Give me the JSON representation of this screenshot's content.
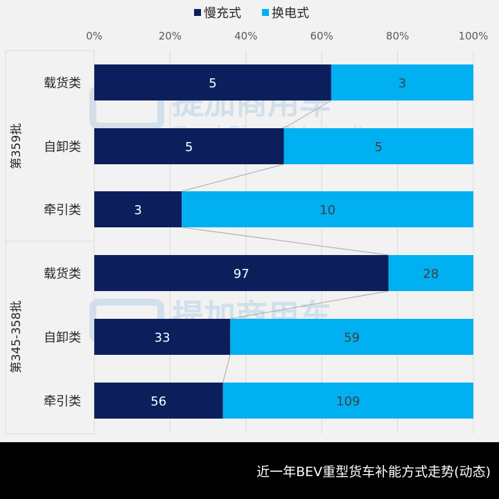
{
  "chart_data": {
    "type": "bar",
    "stacking": "percent",
    "orientation": "horizontal",
    "legend": {
      "placement": "top",
      "items": [
        {
          "label": "慢充式",
          "color": "#0c1f5c"
        },
        {
          "label": "换电式",
          "color": "#00b0f0"
        }
      ]
    },
    "x_axis": {
      "ticks": [
        "0%",
        "20%",
        "40%",
        "60%",
        "80%",
        "100%"
      ],
      "range": [
        0,
        100
      ]
    },
    "groups": [
      {
        "label": "第359批",
        "categories": [
          "载货类",
          "自卸类",
          "牵引类"
        ]
      },
      {
        "label": "第345-358批",
        "categories": [
          "载货类",
          "自卸类",
          "牵引类"
        ]
      }
    ],
    "series": [
      {
        "name": "慢充式",
        "color": "#0c1f5c",
        "values": [
          5,
          5,
          3,
          97,
          33,
          56
        ]
      },
      {
        "name": "换电式",
        "color": "#00b0f0",
        "values": [
          3,
          5,
          10,
          28,
          59,
          109
        ]
      }
    ],
    "series_lines": true,
    "grid": true
  },
  "watermark": {
    "cn": "提加商用车",
    "en": "TruckPlus CV studio"
  },
  "footer": {
    "title": "近一年BEV重型货车补能方式走势(动态)"
  }
}
